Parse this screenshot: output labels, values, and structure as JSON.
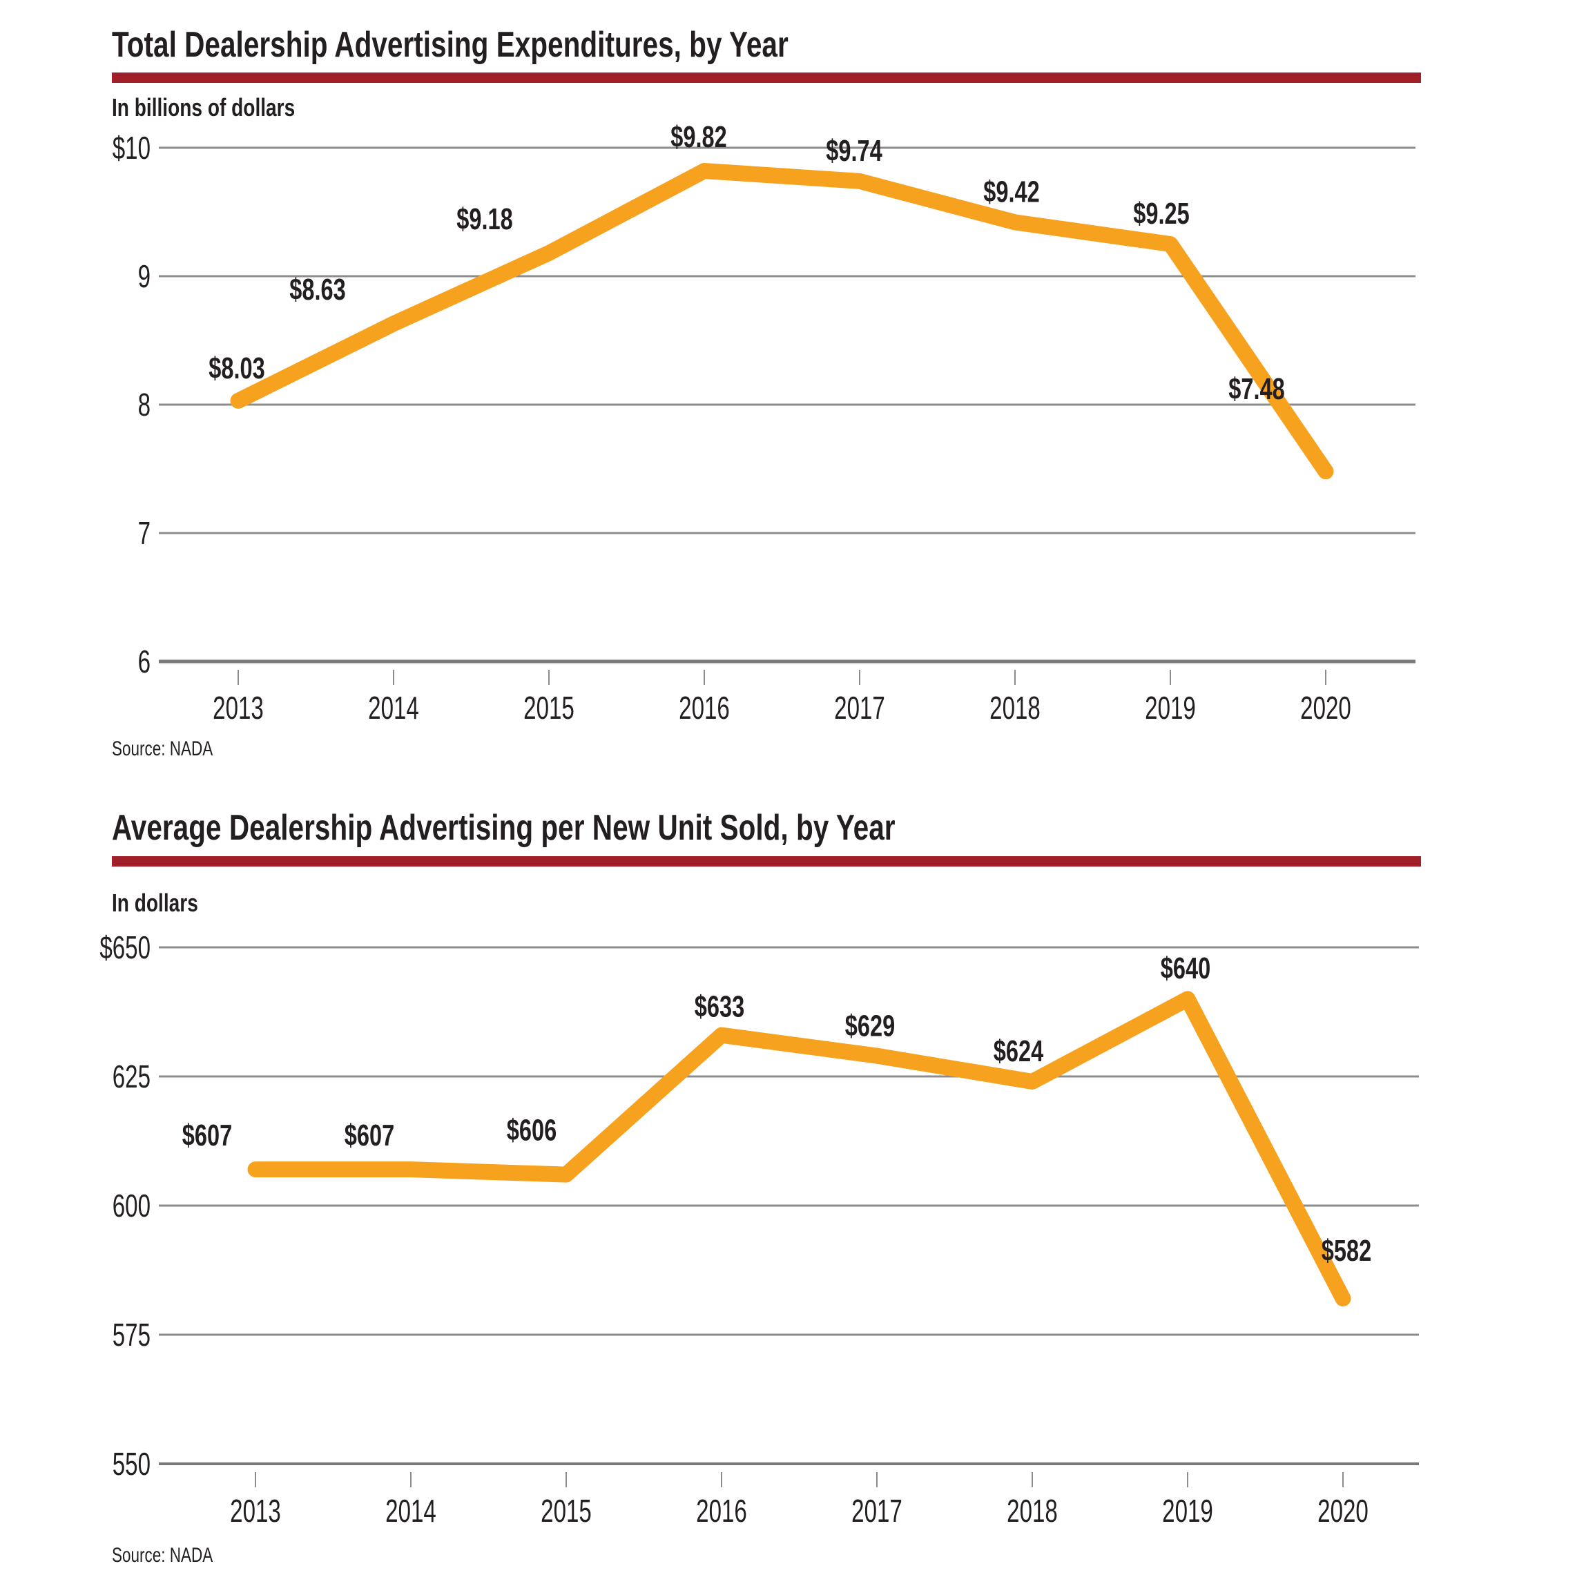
{
  "page": {
    "background": "#ffffff"
  },
  "colors": {
    "accent_red": "#A02029",
    "line_orange": "#F6A21E",
    "gridline_gray": "#8C8C8C",
    "axis_gray": "#7A7A7A",
    "text_dark": "#231F20"
  },
  "chart_data": [
    {
      "type": "line",
      "title": "Total Dealership Advertising Expenditures, by Year",
      "subtitle": "In billions of dollars",
      "source": "Source: NADA",
      "categories": [
        "2013",
        "2014",
        "2015",
        "2016",
        "2017",
        "2018",
        "2019",
        "2020"
      ],
      "values": [
        8.03,
        8.63,
        9.18,
        9.82,
        9.74,
        9.42,
        9.25,
        7.48
      ],
      "point_labels": [
        "$8.03",
        "$8.63",
        "$9.18",
        "$9.82",
        "$9.74",
        "$9.42",
        "$9.25",
        "$7.48"
      ],
      "y_ticks": [
        {
          "value": 10,
          "label": "$10"
        },
        {
          "value": 9,
          "label": "9"
        },
        {
          "value": 8,
          "label": "8"
        },
        {
          "value": 7,
          "label": "7"
        },
        {
          "value": 6,
          "label": "6"
        }
      ],
      "ylim": [
        6,
        10
      ],
      "xlabel": "",
      "ylabel": "In billions of dollars",
      "grid": true,
      "legend": false
    },
    {
      "type": "line",
      "title": "Average Dealership Advertising per New Unit Sold, by Year",
      "subtitle": "In dollars",
      "source": "Source: NADA",
      "categories": [
        "2013",
        "2014",
        "2015",
        "2016",
        "2017",
        "2018",
        "2019",
        "2020"
      ],
      "values": [
        607,
        607,
        606,
        633,
        629,
        624,
        640,
        582
      ],
      "point_labels": [
        "$607",
        "$607",
        "$606",
        "$633",
        "$629",
        "$624",
        "$640",
        "$582"
      ],
      "y_ticks": [
        {
          "value": 650,
          "label": "$650"
        },
        {
          "value": 625,
          "label": "625"
        },
        {
          "value": 600,
          "label": "600"
        },
        {
          "value": 575,
          "label": "575"
        },
        {
          "value": 550,
          "label": "550"
        }
      ],
      "ylim": [
        550,
        650
      ],
      "xlabel": "",
      "ylabel": "In dollars",
      "grid": true,
      "legend": false
    }
  ]
}
